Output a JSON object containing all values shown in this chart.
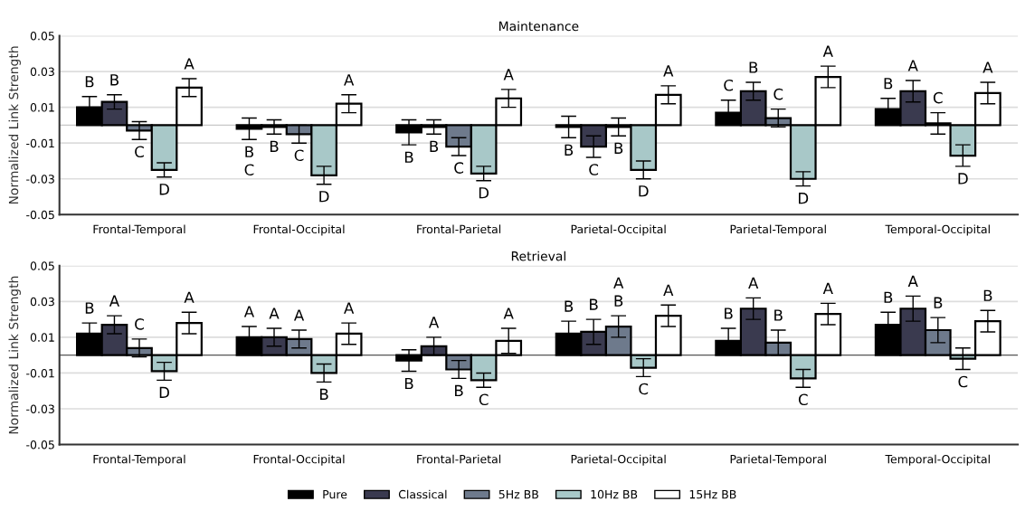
{
  "chart_data": [
    {
      "type": "bar",
      "title": "Maintenance",
      "ylabel": "Normalized Link Strength",
      "categories": [
        "Frontal-Temporal",
        "Frontal-Occipital",
        "Frontal-Parietal",
        "Parietal-Occipital",
        "Parietal-Temporal",
        "Temporal-Occipital"
      ],
      "ylim": [
        -0.05,
        0.05
      ],
      "yticks": [
        -0.05,
        -0.03,
        -0.01,
        0.01,
        0.03,
        0.05
      ],
      "grid": "y",
      "ref_lines": [
        {
          "axis": "y",
          "value": 0,
          "color": "#c8c8c8"
        }
      ],
      "legend": false,
      "series": [
        {
          "color": "#000000",
          "values": [
            0.01,
            -0.002,
            -0.004,
            -0.001,
            0.007,
            0.009
          ],
          "errors": [
            0.006,
            0.006,
            0.007,
            0.006,
            0.007,
            0.006
          ],
          "value_labels": [
            "B",
            "B\nC",
            "B",
            "B",
            "C",
            "B"
          ]
        },
        {
          "color": "#3a3a4f",
          "values": [
            0.013,
            -0.001,
            -0.001,
            -0.012,
            0.019,
            0.019
          ],
          "errors": [
            0.004,
            0.004,
            0.004,
            0.006,
            0.005,
            0.006
          ],
          "value_labels": [
            "B",
            "B",
            "B",
            "C",
            "B",
            "A"
          ]
        },
        {
          "color": "#6e7a8c",
          "values": [
            -0.003,
            -0.005,
            -0.012,
            -0.001,
            0.004,
            0.001
          ],
          "errors": [
            0.005,
            0.005,
            0.005,
            0.005,
            0.005,
            0.006
          ],
          "value_labels": [
            "C",
            "C",
            "C",
            "B",
            "C",
            "C"
          ]
        },
        {
          "color": "#a8c8c8",
          "values": [
            -0.025,
            -0.028,
            -0.027,
            -0.025,
            -0.03,
            -0.017
          ],
          "errors": [
            0.004,
            0.005,
            0.004,
            0.005,
            0.004,
            0.006
          ],
          "value_labels": [
            "D",
            "D",
            "D",
            "D",
            "D",
            "D"
          ]
        },
        {
          "color": "#ffffff",
          "values": [
            0.021,
            0.012,
            0.015,
            0.017,
            0.027,
            0.018
          ],
          "errors": [
            0.005,
            0.005,
            0.005,
            0.005,
            0.006,
            0.006
          ],
          "value_labels": [
            "A",
            "A",
            "A",
            "A",
            "A",
            "A"
          ]
        }
      ]
    },
    {
      "type": "bar",
      "title": "Retrieval",
      "ylabel": "Normalized Link Strength",
      "categories": [
        "Frontal-Temporal",
        "Frontal-Occipital",
        "Frontal-Parietal",
        "Parietal-Occipital",
        "Parietal-Temporal",
        "Temporal-Occipital"
      ],
      "ylim": [
        -0.05,
        0.05
      ],
      "yticks": [
        -0.05,
        -0.03,
        -0.01,
        0.01,
        0.03,
        0.05
      ],
      "grid": "y",
      "ref_lines": [
        {
          "axis": "y",
          "value": 0,
          "color": "#555555"
        }
      ],
      "legend": "bottom",
      "series": [
        {
          "name": "Pure",
          "color": "#000000",
          "values": [
            0.012,
            0.01,
            -0.003,
            0.012,
            0.008,
            0.017
          ],
          "errors": [
            0.006,
            0.006,
            0.006,
            0.007,
            0.007,
            0.007
          ],
          "value_labels": [
            "B",
            "A",
            "B",
            "B",
            "B",
            "B"
          ]
        },
        {
          "name": "Classical",
          "color": "#3a3a4f",
          "values": [
            0.017,
            0.01,
            0.005,
            0.013,
            0.026,
            0.026
          ],
          "errors": [
            0.005,
            0.005,
            0.005,
            0.007,
            0.006,
            0.007
          ],
          "value_labels": [
            "A",
            "A",
            "A",
            "B",
            "A",
            "A"
          ]
        },
        {
          "name": "5Hz BB",
          "color": "#6e7a8c",
          "values": [
            0.004,
            0.009,
            -0.008,
            0.016,
            0.007,
            0.014
          ],
          "errors": [
            0.005,
            0.005,
            0.005,
            0.006,
            0.007,
            0.007
          ],
          "value_labels": [
            "C",
            "A",
            "B",
            "A\nB",
            "B",
            "B"
          ]
        },
        {
          "name": "10Hz BB",
          "color": "#a8c8c8",
          "values": [
            -0.009,
            -0.01,
            -0.014,
            -0.007,
            -0.013,
            -0.002
          ],
          "errors": [
            0.005,
            0.005,
            0.004,
            0.005,
            0.005,
            0.006
          ],
          "value_labels": [
            "D",
            "B",
            "C",
            "C",
            "C",
            "C"
          ]
        },
        {
          "name": "15Hz BB",
          "color": "#ffffff",
          "values": [
            0.018,
            0.012,
            0.008,
            0.022,
            0.023,
            0.019
          ],
          "errors": [
            0.006,
            0.006,
            0.007,
            0.006,
            0.006,
            0.006
          ],
          "value_labels": [
            "A",
            "A",
            "A",
            "A",
            "A",
            "B"
          ]
        }
      ]
    }
  ]
}
